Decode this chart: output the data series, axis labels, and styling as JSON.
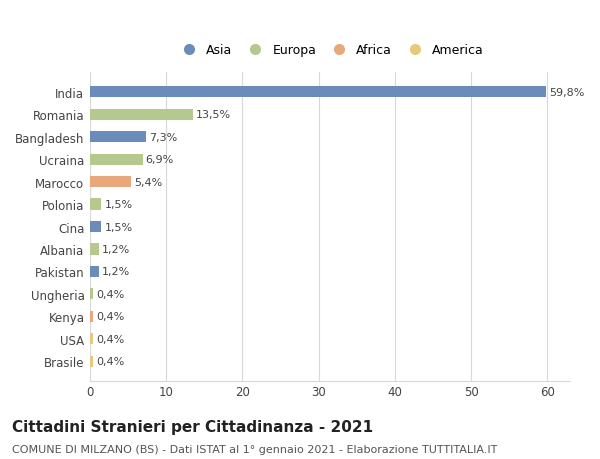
{
  "categories": [
    "India",
    "Romania",
    "Bangladesh",
    "Ucraina",
    "Marocco",
    "Polonia",
    "Cina",
    "Albania",
    "Pakistan",
    "Ungheria",
    "Kenya",
    "USA",
    "Brasile"
  ],
  "values": [
    59.8,
    13.5,
    7.3,
    6.9,
    5.4,
    1.5,
    1.5,
    1.2,
    1.2,
    0.4,
    0.4,
    0.4,
    0.4
  ],
  "labels": [
    "59,8%",
    "13,5%",
    "7,3%",
    "6,9%",
    "5,4%",
    "1,5%",
    "1,5%",
    "1,2%",
    "1,2%",
    "0,4%",
    "0,4%",
    "0,4%",
    "0,4%"
  ],
  "colors": [
    "#6b8cba",
    "#b5c98e",
    "#6b8cba",
    "#b5c98e",
    "#e8a87c",
    "#b5c98e",
    "#6b8cba",
    "#b5c98e",
    "#6b8cba",
    "#b5c98e",
    "#e8a87c",
    "#e8c97c",
    "#e8c97c"
  ],
  "legend_labels": [
    "Asia",
    "Europa",
    "Africa",
    "America"
  ],
  "legend_colors": [
    "#6b8cba",
    "#b5c98e",
    "#e8a87c",
    "#e8c97c"
  ],
  "title": "Cittadini Stranieri per Cittadinanza - 2021",
  "subtitle": "COMUNE DI MILZANO (BS) - Dati ISTAT al 1° gennaio 2021 - Elaborazione TUTTITALIA.IT",
  "xlim": [
    0,
    63
  ],
  "xticks": [
    0,
    10,
    20,
    30,
    40,
    50,
    60
  ],
  "background_color": "#ffffff",
  "grid_color": "#d8d8d8",
  "title_fontsize": 11,
  "subtitle_fontsize": 8,
  "label_fontsize": 8,
  "tick_fontsize": 8.5,
  "bar_height": 0.5
}
